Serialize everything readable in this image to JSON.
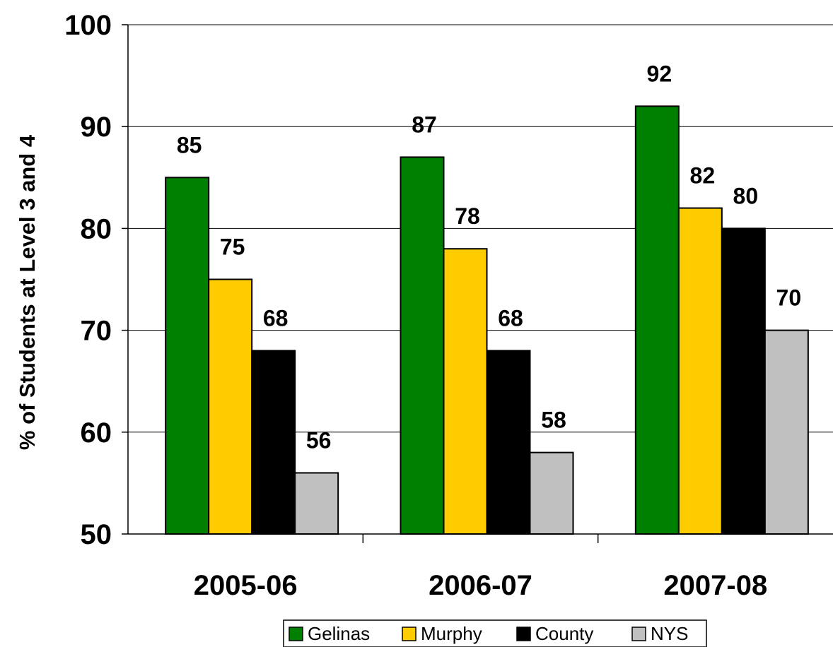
{
  "chart_data": {
    "type": "bar",
    "title": "",
    "xlabel": "",
    "ylabel": "% of Students at Level 3 and 4",
    "ylim": [
      50,
      100
    ],
    "yticks": [
      "50",
      "60",
      "70",
      "80",
      "90",
      "100"
    ],
    "categories": [
      "2005-06",
      "2006-07",
      "2007-08"
    ],
    "series": [
      {
        "name": "Gelinas",
        "color": "#008000",
        "values": [
          85,
          87,
          92
        ]
      },
      {
        "name": "Murphy",
        "color": "#FFCC00",
        "values": [
          75,
          78,
          82
        ]
      },
      {
        "name": "County",
        "color": "#000000",
        "values": [
          68,
          68,
          80
        ]
      },
      {
        "name": "NYS",
        "color": "#C0C0C0",
        "values": [
          56,
          58,
          70
        ]
      }
    ],
    "data_labels": true,
    "grid": "horizontal",
    "legend": "bottom"
  }
}
